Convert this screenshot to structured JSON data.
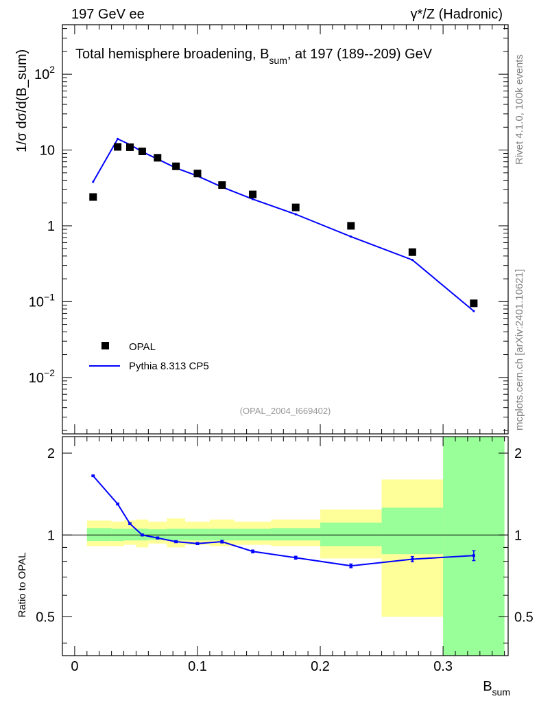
{
  "header": {
    "left": "197 GeV ee",
    "right": "γ*/Z (Hadronic)"
  },
  "title": {
    "main": "Total hemisphere broadening, B",
    "sub": "sum",
    "rest": ", at 197 (189--209) GeV"
  },
  "side": {
    "top": "Rivet 4.1.0,  100k events",
    "bottom": "mcplots.cern.ch [arXiv:2401.10621]"
  },
  "analysis_tag": "(OPAL_2004_I669402)",
  "chart_data": {
    "type": "scatter",
    "main_panel": {
      "yscale": "log",
      "ylim": [
        0.0018,
        450
      ],
      "ylabel": "1/σ  dσ/d(B_sum)",
      "ytick_labels": [
        {
          "value": 0.01,
          "base": "10",
          "exp": "−2"
        },
        {
          "value": 0.1,
          "base": "10",
          "exp": "−1"
        },
        {
          "value": 1,
          "base": "1",
          "exp": ""
        },
        {
          "value": 10,
          "base": "10",
          "exp": ""
        },
        {
          "value": 100,
          "base": "10",
          "exp": "2"
        }
      ]
    },
    "ratio_panel": {
      "yscale": "log",
      "ylim": [
        0.36,
        2.3
      ],
      "ylabel": "Ratio to OPAL",
      "ytick_labels": [
        {
          "value": 0.5,
          "label": "0.5"
        },
        {
          "value": 1,
          "label": "1"
        },
        {
          "value": 2,
          "label": "2"
        }
      ]
    },
    "xlim": [
      -0.01,
      0.353
    ],
    "xlabel": "B",
    "xlabel_sub": "sum",
    "xticks": [
      0,
      0.1,
      0.2,
      0.3
    ],
    "xtick_labels": [
      "0",
      "0.1",
      "0.2",
      "0.3"
    ],
    "bin_edges": [
      0.01,
      0.03,
      0.04,
      0.05,
      0.06,
      0.075,
      0.09,
      0.11,
      0.13,
      0.16,
      0.2,
      0.25,
      0.3,
      0.35
    ],
    "series": [
      {
        "name": "OPAL",
        "kind": "data",
        "color": "#000000",
        "x": [
          0.015,
          0.035,
          0.045,
          0.055,
          0.0675,
          0.0825,
          0.1,
          0.12,
          0.145,
          0.18,
          0.225,
          0.275,
          0.325
        ],
        "y": [
          2.4,
          11.0,
          10.9,
          9.6,
          7.9,
          6.1,
          4.9,
          3.45,
          2.6,
          1.75,
          1.0,
          0.45,
          0.095
        ]
      },
      {
        "name": "Pythia 8.313 CP5",
        "kind": "mc",
        "color": "#0000ff",
        "x": [
          0.015,
          0.035,
          0.045,
          0.055,
          0.0675,
          0.0825,
          0.1,
          0.12,
          0.145,
          0.18,
          0.225,
          0.275,
          0.325
        ],
        "y": [
          3.8,
          14.0,
          11.8,
          9.5,
          7.6,
          5.8,
          4.55,
          3.25,
          2.25,
          1.42,
          0.72,
          0.355,
          0.075
        ],
        "ratio": [
          1.65,
          1.3,
          1.1,
          1.0,
          0.975,
          0.945,
          0.93,
          0.945,
          0.87,
          0.825,
          0.77,
          0.815,
          0.84
        ],
        "ratio_err": [
          0.01,
          0.01,
          0.008,
          0.008,
          0.008,
          0.008,
          0.008,
          0.01,
          0.01,
          0.01,
          0.012,
          0.018,
          0.035
        ]
      }
    ],
    "bands": {
      "stat": {
        "color": "#99ff99",
        "lo": [
          0.95,
          0.95,
          0.955,
          0.955,
          0.96,
          0.955,
          0.955,
          0.955,
          0.955,
          0.955,
          0.91,
          0.85,
          0.36
        ],
        "hi": [
          1.06,
          1.055,
          1.055,
          1.055,
          1.05,
          1.055,
          1.055,
          1.055,
          1.055,
          1.06,
          1.11,
          1.26,
          2.3
        ]
      },
      "total": {
        "color": "#ffff99",
        "lo": [
          0.91,
          0.91,
          0.92,
          0.9,
          0.93,
          0.9,
          0.92,
          0.91,
          0.92,
          0.91,
          0.82,
          0.5,
          0.36
        ],
        "hi": [
          1.13,
          1.12,
          1.13,
          1.14,
          1.12,
          1.15,
          1.12,
          1.14,
          1.12,
          1.14,
          1.24,
          1.6,
          2.3
        ]
      }
    },
    "legend": {
      "position": "lower-left",
      "entries": [
        "OPAL",
        "Pythia 8.313 CP5"
      ]
    }
  }
}
